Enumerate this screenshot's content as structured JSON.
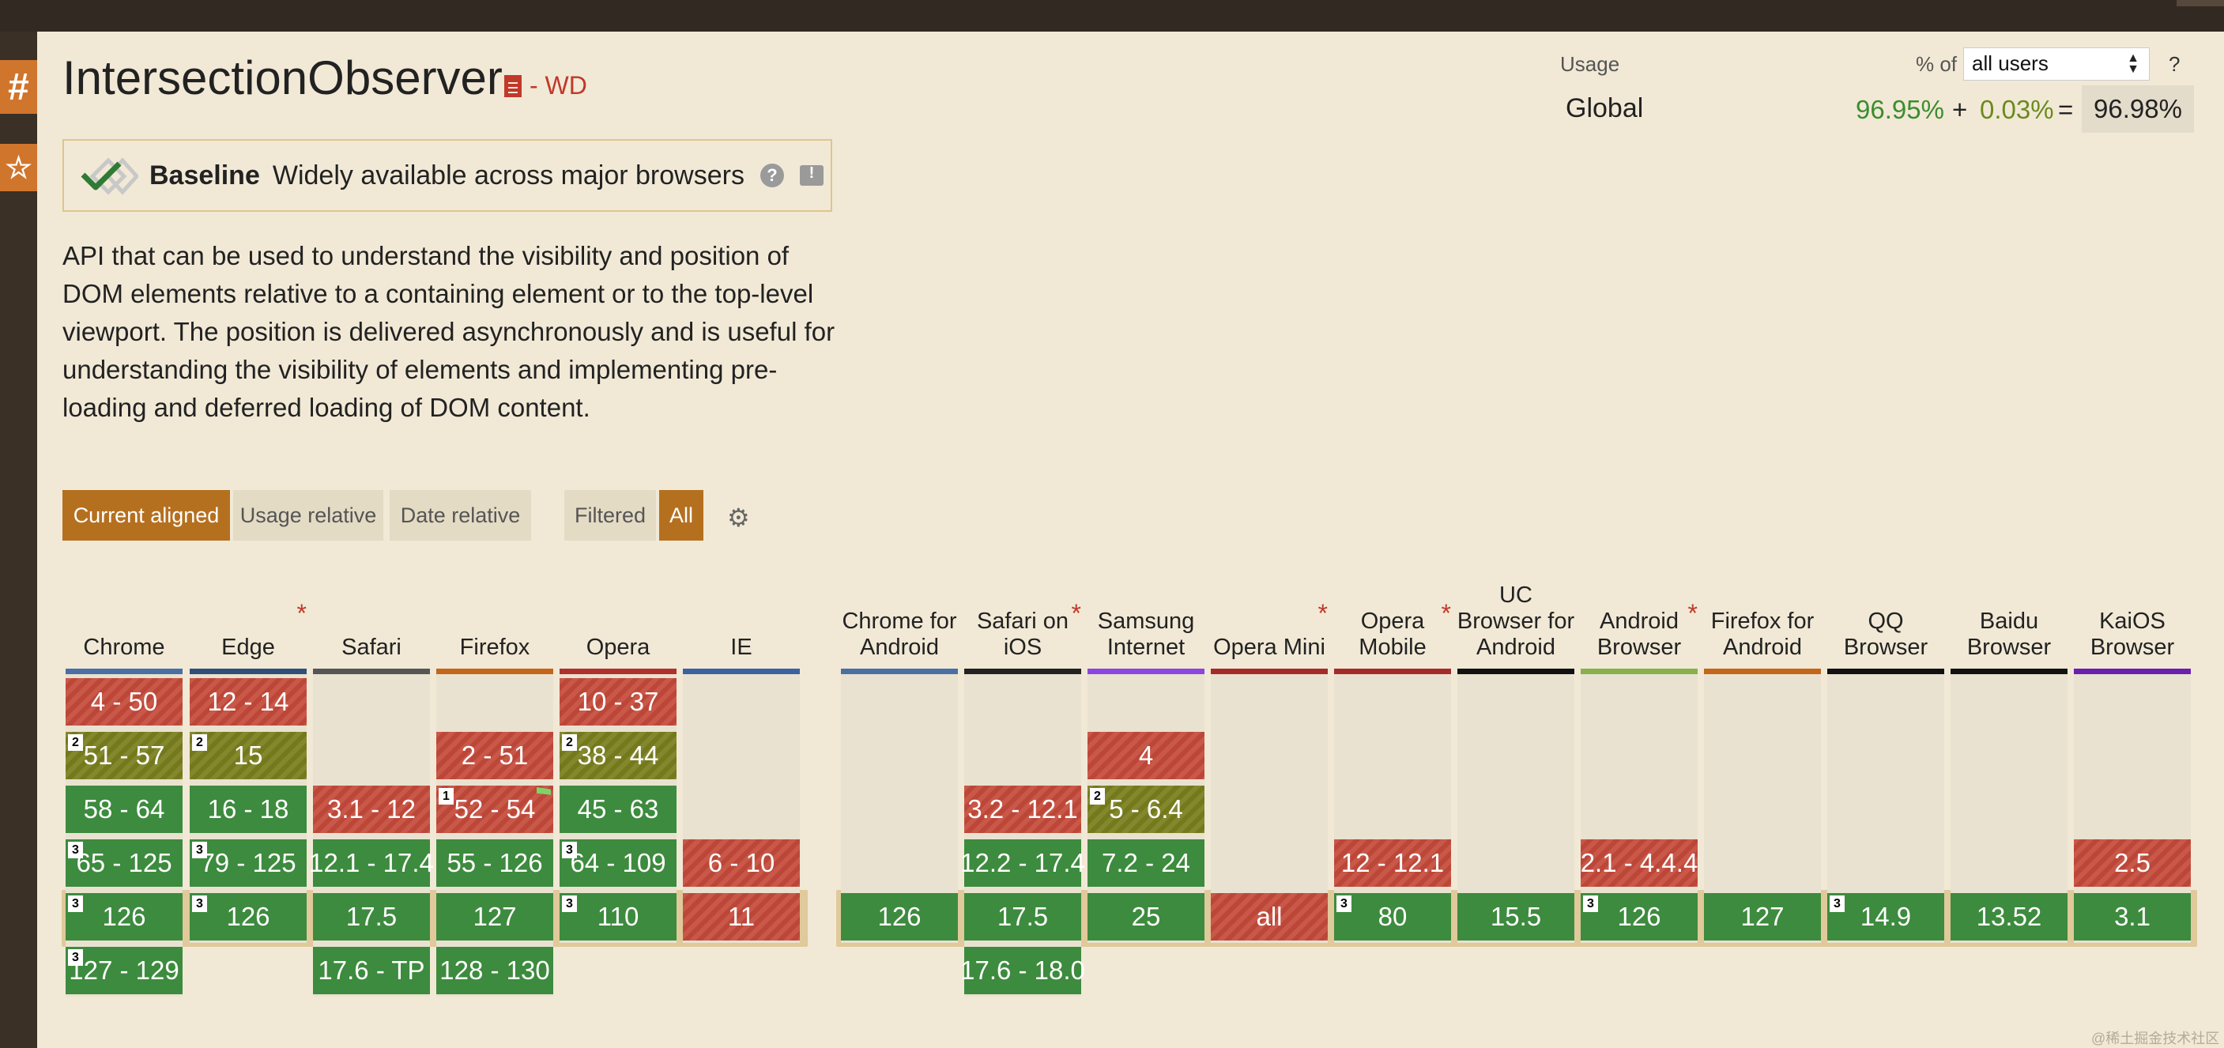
{
  "feature": {
    "title": "IntersectionObserver",
    "spec_status": "- WD",
    "baseline_title": "Baseline",
    "baseline_text": "Widely available across major browsers",
    "description": "API that can be used to understand the visibility and position of DOM elements relative to a containing element or to the top-level viewport. The position is delivered asynchronously and is useful for understanding the visibility of elements and implementing pre-loading and deferred loading of DOM content."
  },
  "usage": {
    "label": "Usage",
    "pct_of": "% of",
    "users_select": "all users",
    "help": "?",
    "region": "Global",
    "full": "96.95%",
    "plus": "+",
    "partial": "0.03%",
    "equals": "=",
    "total": "96.98%"
  },
  "view_buttons": {
    "current_aligned": "Current aligned",
    "usage_relative": "Usage relative",
    "date_relative": "Date relative",
    "filtered": "Filtered",
    "all": "All"
  },
  "colors": {
    "supported": "#3d8b3e",
    "not_supported": "#c44a3a",
    "partial": "#7a7f1e",
    "accent": "#b5701f",
    "side_tab": "#d0752c"
  },
  "browsers": [
    {
      "name": "Chrome",
      "asterisk": false,
      "bar": "#4a6fa5",
      "cells": [
        {
          "text": "4 - 50",
          "s": "n"
        },
        {
          "text": "51 - 57",
          "s": "a",
          "note": "2"
        },
        {
          "text": "58 - 64",
          "s": "y"
        },
        {
          "text": "65 - 125",
          "s": "y",
          "note": "3"
        },
        {
          "text": "126",
          "s": "y",
          "note": "3"
        },
        {
          "text": "127 - 129",
          "s": "y",
          "note": "3"
        }
      ]
    },
    {
      "name": "Edge",
      "asterisk": true,
      "bar": "#2f4f7a",
      "cells": [
        {
          "text": "12 - 14",
          "s": "n"
        },
        {
          "text": "15",
          "s": "a",
          "note": "2"
        },
        {
          "text": "16 - 18",
          "s": "y"
        },
        {
          "text": "79 - 125",
          "s": "y",
          "note": "3"
        },
        {
          "text": "126",
          "s": "y",
          "note": "3"
        },
        null
      ]
    },
    {
      "name": "Safari",
      "asterisk": false,
      "bar": "#555555",
      "cells": [
        null,
        null,
        {
          "text": "3.1 - 12",
          "s": "n"
        },
        {
          "text": "12.1 - 17.4",
          "s": "y"
        },
        {
          "text": "17.5",
          "s": "y"
        },
        {
          "text": "17.6 - TP",
          "s": "y"
        }
      ]
    },
    {
      "name": "Firefox",
      "asterisk": false,
      "bar": "#c4651a",
      "cells": [
        null,
        {
          "text": "2 - 51",
          "s": "n"
        },
        {
          "text": "52 - 54",
          "s": "n",
          "note": "1",
          "flag": true
        },
        {
          "text": "55 - 126",
          "s": "y"
        },
        {
          "text": "127",
          "s": "y"
        },
        {
          "text": "128 - 130",
          "s": "y"
        }
      ]
    },
    {
      "name": "Opera",
      "asterisk": false,
      "bar": "#b03030",
      "cells": [
        {
          "text": "10 - 37",
          "s": "n"
        },
        {
          "text": "38 - 44",
          "s": "a",
          "note": "2"
        },
        {
          "text": "45 - 63",
          "s": "y"
        },
        {
          "text": "64 - 109",
          "s": "y",
          "note": "3"
        },
        {
          "text": "110",
          "s": "y",
          "note": "3"
        },
        null
      ]
    },
    {
      "name": "IE",
      "asterisk": false,
      "bar": "#3b62a0",
      "cells": [
        null,
        null,
        null,
        {
          "text": "6 - 10",
          "s": "n"
        },
        {
          "text": "11",
          "s": "n"
        },
        null
      ]
    },
    {
      "name": "Chrome for Android",
      "asterisk": false,
      "bar": "#4a6fa5",
      "cells": [
        null,
        null,
        null,
        null,
        {
          "text": "126",
          "s": "y"
        },
        null
      ]
    },
    {
      "name": "Safari on iOS",
      "asterisk": true,
      "bar": "#222222",
      "cells": [
        null,
        null,
        {
          "text": "3.2 - 12.1",
          "s": "n"
        },
        {
          "text": "12.2 - 17.4",
          "s": "y"
        },
        {
          "text": "17.5",
          "s": "y"
        },
        {
          "text": "17.6 - 18.0",
          "s": "y"
        }
      ]
    },
    {
      "name": "Samsung Internet",
      "asterisk": false,
      "bar": "#8e44e0",
      "cells": [
        null,
        {
          "text": "4",
          "s": "n"
        },
        {
          "text": "5 - 6.4",
          "s": "a",
          "note": "2"
        },
        {
          "text": "7.2 - 24",
          "s": "y"
        },
        {
          "text": "25",
          "s": "y"
        },
        null
      ]
    },
    {
      "name": "Opera Mini",
      "asterisk": true,
      "bar": "#a52a2a",
      "cells": [
        null,
        null,
        null,
        null,
        {
          "text": "all",
          "s": "n"
        },
        null
      ]
    },
    {
      "name": "Opera Mobile",
      "asterisk": true,
      "bar": "#a52a2a",
      "cells": [
        null,
        null,
        null,
        {
          "text": "12 - 12.1",
          "s": "n"
        },
        {
          "text": "80",
          "s": "y",
          "note": "3"
        },
        null
      ]
    },
    {
      "name": "UC Browser for Android",
      "asterisk": false,
      "bar": "#111111",
      "cells": [
        null,
        null,
        null,
        null,
        {
          "text": "15.5",
          "s": "y"
        },
        null
      ]
    },
    {
      "name": "Android Browser",
      "asterisk": true,
      "bar": "#88b04b",
      "cells": [
        null,
        null,
        null,
        {
          "text": "2.1 - 4.4.4",
          "s": "n"
        },
        {
          "text": "126",
          "s": "y",
          "note": "3"
        },
        null
      ]
    },
    {
      "name": "Firefox for Android",
      "asterisk": false,
      "bar": "#c4651a",
      "cells": [
        null,
        null,
        null,
        null,
        {
          "text": "127",
          "s": "y"
        },
        null
      ]
    },
    {
      "name": "QQ Browser",
      "asterisk": false,
      "bar": "#111111",
      "cells": [
        null,
        null,
        null,
        null,
        {
          "text": "14.9",
          "s": "y",
          "note": "3"
        },
        null
      ]
    },
    {
      "name": "Baidu Browser",
      "asterisk": false,
      "bar": "#111111",
      "cells": [
        null,
        null,
        null,
        null,
        {
          "text": "13.52",
          "s": "y"
        },
        null
      ]
    },
    {
      "name": "KaiOS Browser",
      "asterisk": false,
      "bar": "#6a1fb0",
      "cells": [
        null,
        null,
        null,
        {
          "text": "2.5",
          "s": "n"
        },
        {
          "text": "3.1",
          "s": "y"
        },
        null
      ]
    }
  ],
  "watermark": "@稀土掘金技术社区"
}
